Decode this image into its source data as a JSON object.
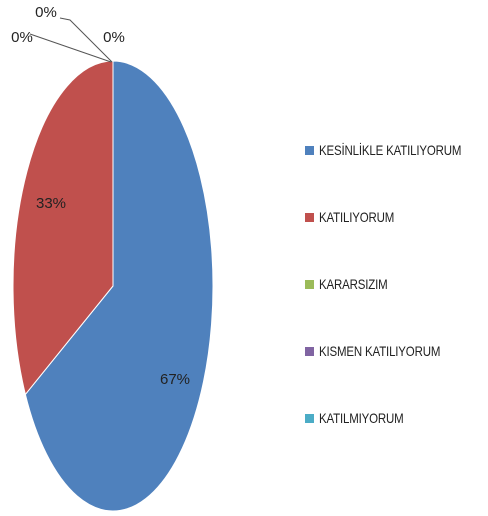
{
  "chart_data": {
    "type": "pie",
    "title": "",
    "series": [
      {
        "name": "KESİNLİKLE KATILIYORUM",
        "value": 67,
        "label": "67%",
        "color": "#4F81BD"
      },
      {
        "name": "KATILIYORUM",
        "value": 33,
        "label": "33%",
        "color": "#C0504D"
      },
      {
        "name": "KARARSIZIM",
        "value": 0,
        "label": "0%",
        "color": "#9BBB59"
      },
      {
        "name": "KISMEN KATILIYORUM",
        "value": 0,
        "label": "0%",
        "color": "#8064A2"
      },
      {
        "name": "KATILMIYORUM",
        "value": 0,
        "label": "0%",
        "color": "#4BACC6"
      }
    ],
    "legend_position": "right"
  }
}
